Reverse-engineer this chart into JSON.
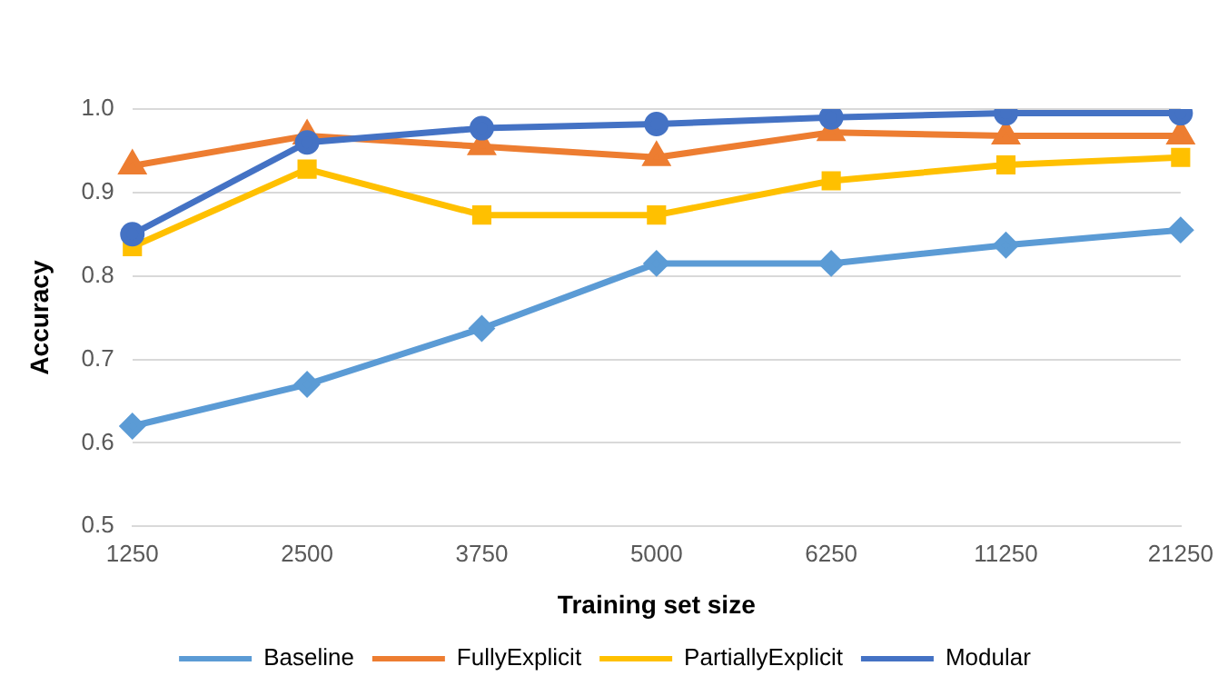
{
  "chart_data": {
    "type": "line",
    "xlabel": "Training set size",
    "ylabel": "Accuracy",
    "categories": [
      "1250",
      "2500",
      "3750",
      "5000",
      "6250",
      "11250",
      "21250"
    ],
    "series": [
      {
        "name": "Baseline",
        "color": "#5b9bd5",
        "marker": "diamond",
        "values": [
          0.62,
          0.67,
          0.737,
          0.815,
          0.815,
          0.837,
          0.855
        ]
      },
      {
        "name": "FullyExplicit",
        "color": "#ed7d31",
        "marker": "triangle",
        "values": [
          0.932,
          0.968,
          0.955,
          0.942,
          0.972,
          0.968,
          0.968
        ]
      },
      {
        "name": "PartiallyExplicit",
        "color": "#ffc000",
        "marker": "square",
        "values": [
          0.835,
          0.928,
          0.873,
          0.873,
          0.914,
          0.933,
          0.942
        ]
      },
      {
        "name": "Modular",
        "color": "#4472c4",
        "marker": "circle",
        "values": [
          0.85,
          0.96,
          0.977,
          0.982,
          0.99,
          0.995,
          0.995
        ]
      }
    ],
    "ylim": [
      0.5,
      1.0
    ],
    "yticks": [
      {
        "value": 0.5,
        "label": "0.5"
      },
      {
        "value": 0.6,
        "label": "0.6"
      },
      {
        "value": 0.7,
        "label": "0.7"
      },
      {
        "value": 0.8,
        "label": "0.8"
      },
      {
        "value": 0.9,
        "label": "0.9"
      },
      {
        "value": 1.0,
        "label": "1.0"
      }
    ],
    "grid": "y",
    "legend": "bottom",
    "line_style": "solid"
  }
}
